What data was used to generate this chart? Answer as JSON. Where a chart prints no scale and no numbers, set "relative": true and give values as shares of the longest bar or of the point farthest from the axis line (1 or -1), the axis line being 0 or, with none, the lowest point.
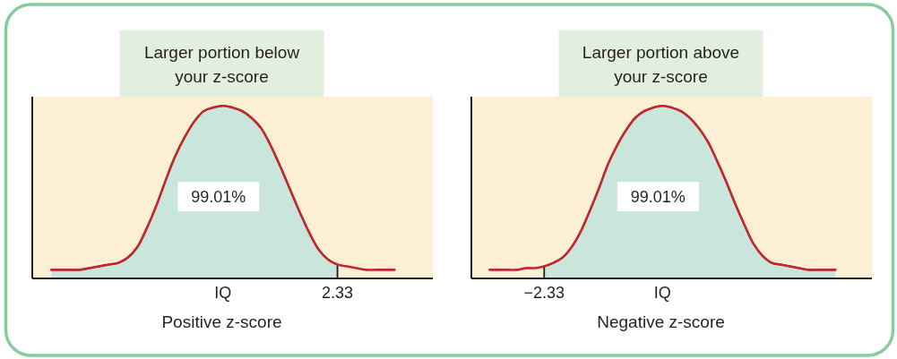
{
  "chart_data": [
    {
      "type": "area",
      "title": "Larger portion below your z-score",
      "xlabel": "Positive z-score",
      "relative": true,
      "categories": [
        null,
        null,
        null,
        null,
        null,
        null,
        null,
        null,
        null,
        null,
        null,
        null,
        null,
        null,
        null,
        null,
        null,
        null,
        null,
        null,
        "IQ",
        null,
        null,
        null,
        null,
        null,
        null,
        null,
        null,
        null,
        null,
        null,
        "2.33",
        null,
        null,
        null,
        null,
        null,
        null,
        null,
        null,
        null,
        null
      ],
      "series": [
        {
          "type": "area",
          "color": "#c9e5dc",
          "values": [
            null,
            null,
            0.05,
            0.05,
            0.05,
            0.05,
            0.06,
            0.07,
            0.08,
            0.09,
            0.12,
            0.18,
            0.29,
            0.42,
            0.57,
            0.71,
            0.82,
            0.91,
            0.97,
            0.99,
            1,
            0.99,
            0.97,
            0.93,
            0.87,
            0.77,
            0.65,
            0.52,
            0.39,
            0.27,
            0.17,
            0.11,
            0.08,
            null,
            null,
            null,
            null,
            null,
            null,
            null,
            null,
            null,
            null
          ]
        },
        {
          "type": "line",
          "color": "#c1272d",
          "values": [
            null,
            null,
            0.05,
            0.05,
            0.05,
            0.05,
            0.06,
            0.07,
            0.08,
            0.09,
            0.12,
            0.18,
            0.29,
            0.42,
            0.57,
            0.71,
            0.82,
            0.91,
            0.97,
            0.99,
            1,
            0.99,
            0.97,
            0.93,
            0.87,
            0.77,
            0.65,
            0.52,
            0.39,
            0.27,
            0.17,
            0.11,
            0.08,
            0.07,
            0.06,
            0.05,
            0.05,
            0.05,
            0.05,
            null,
            null,
            null,
            null
          ]
        }
      ],
      "annotations": [
        "99.01%"
      ]
    },
    {
      "type": "area",
      "title": "Larger portion above your z-score",
      "xlabel": "Negative z-score",
      "relative": true,
      "categories": [
        null,
        null,
        null,
        null,
        null,
        null,
        null,
        null,
        "−2.33",
        null,
        null,
        null,
        null,
        null,
        null,
        null,
        null,
        null,
        null,
        null,
        null,
        "IQ",
        null,
        null,
        null,
        null,
        null,
        null,
        null,
        null,
        null,
        null,
        null,
        null,
        null,
        null,
        null,
        null,
        null,
        null,
        null,
        null,
        null,
        null,
        null
      ],
      "series": [
        {
          "type": "area",
          "color": "#c9e5dc",
          "values": [
            null,
            null,
            null,
            null,
            null,
            null,
            null,
            null,
            0.07,
            0.09,
            0.12,
            0.18,
            0.27,
            0.39,
            0.52,
            0.66,
            0.77,
            0.86,
            0.93,
            0.97,
            0.99,
            1,
            0.99,
            0.97,
            0.93,
            0.87,
            0.79,
            0.68,
            0.56,
            0.43,
            0.31,
            0.2,
            0.13,
            0.09,
            0.08,
            0.07,
            0.06,
            0.05,
            0.05,
            0.05,
            0.05,
            null,
            null,
            null,
            null
          ]
        },
        {
          "type": "line",
          "color": "#c1272d",
          "values": [
            null,
            null,
            0.05,
            0.05,
            0.05,
            0.05,
            0.06,
            0.06,
            0.07,
            0.09,
            0.12,
            0.18,
            0.27,
            0.39,
            0.52,
            0.66,
            0.77,
            0.86,
            0.93,
            0.97,
            0.99,
            1,
            0.99,
            0.97,
            0.93,
            0.87,
            0.79,
            0.68,
            0.56,
            0.43,
            0.31,
            0.2,
            0.13,
            0.09,
            0.08,
            0.07,
            0.06,
            0.05,
            0.05,
            0.05,
            0.05,
            null,
            null,
            null,
            null
          ]
        }
      ],
      "annotations": [
        "99.01%"
      ]
    }
  ]
}
